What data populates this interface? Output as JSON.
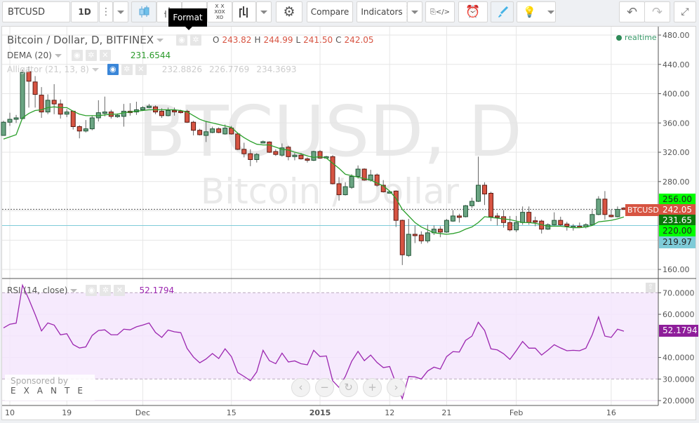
{
  "toolbar": {
    "symbol": "BTCUSD",
    "interval": "1D",
    "compare_label": "Compare",
    "indicators_label": "Indicators",
    "tooltip": "Format",
    "icons": [
      "more-icon",
      "candles-icon",
      "bars-icon",
      "line-icon",
      "point-figure-icon",
      "kagi-icon",
      "gear-icon",
      "script-icon",
      "alert-icon",
      "brush-icon",
      "bulb-icon",
      "undo-icon",
      "redo-icon",
      "fullscreen-icon"
    ]
  },
  "legend": {
    "title": "Bitcoin / Dollar, D, BITFINEX",
    "o_label": "O",
    "o": "243.82",
    "h_label": "H",
    "h": "244.99",
    "l_label": "L",
    "l": "241.50",
    "c_label": "C",
    "c": "242.05",
    "dema_label": "DEMA (20)",
    "dema_value": "231.6544",
    "alligator_label": "Alligator (21, 13, 8)",
    "alligator_values": [
      "232.8826",
      "226.7769",
      "234.3693"
    ],
    "rsi_label": "RSI (14, close)",
    "rsi_value": "52.1794",
    "realtime": "realtime"
  },
  "watermark": {
    "line1": "BTCUSD, D",
    "line2": "Bitcoin / Dollar"
  },
  "price_axis": {
    "ticks": [
      "480.00",
      "440.00",
      "400.00",
      "360.00",
      "320.00",
      "280.00",
      "160.00"
    ],
    "labels": {
      "high_line": "256.00",
      "symbol_tag": "BTCUSD",
      "last": "242.05",
      "dema": "231.65",
      "low_line": "220.00",
      "hline": "219.97"
    }
  },
  "rsi_axis": {
    "ticks": [
      "70.0000",
      "60.0000",
      "40.0000",
      "30.0000",
      "20.0000"
    ],
    "last": "52.1794"
  },
  "sponsor": {
    "text": "Sponsored by",
    "brand": "EXANTE"
  },
  "nav_buttons": [
    "‹",
    "−",
    "↻",
    "+",
    "›"
  ],
  "colors": {
    "up": "#6ba583",
    "down": "#d75442",
    "dema": "#2ca02c",
    "rsi": "#9c27b0",
    "hline": "#7ecbd8",
    "rsi_band": "#f4e6fd"
  },
  "chart_data": [
    {
      "type": "candlestick",
      "title": "Bitcoin / Dollar, D, BITFINEX",
      "ylim": [
        150,
        490
      ],
      "x_ticks": [
        {
          "label": "10",
          "index": 1
        },
        {
          "label": "19",
          "index": 10
        },
        {
          "label": "Dec",
          "index": 22
        },
        {
          "label": "15",
          "index": 36
        },
        {
          "label": "2015",
          "index": 50
        },
        {
          "label": "12",
          "index": 61
        },
        {
          "label": "21",
          "index": 70
        },
        {
          "label": "Feb",
          "index": 81
        },
        {
          "label": "16",
          "index": 96
        }
      ],
      "ohlc": [
        [
          343,
          363,
          343,
          361
        ],
        [
          361,
          374,
          356,
          365
        ],
        [
          365,
          371,
          360,
          367
        ],
        [
          366,
          433,
          365,
          429
        ],
        [
          430,
          437,
          381,
          417
        ],
        [
          416,
          424,
          381,
          399
        ],
        [
          398,
          409,
          367,
          375
        ],
        [
          375,
          399,
          372,
          391
        ],
        [
          391,
          413,
          372,
          386
        ],
        [
          386,
          392,
          366,
          372
        ],
        [
          372,
          379,
          368,
          375
        ],
        [
          376,
          377,
          351,
          355
        ],
        [
          355,
          357,
          339,
          349
        ],
        [
          349,
          364,
          347,
          352
        ],
        [
          352,
          370,
          350,
          367
        ],
        [
          367,
          391,
          362,
          374
        ],
        [
          374,
          396,
          369,
          375
        ],
        [
          375,
          378,
          366,
          369
        ],
        [
          370,
          373,
          367,
          370.5
        ],
        [
          369,
          386,
          355,
          376
        ],
        [
          376,
          387,
          370,
          375
        ],
        [
          375,
          389,
          371,
          378
        ],
        [
          378,
          383,
          377,
          381
        ],
        [
          381,
          386,
          380,
          383
        ],
        [
          382,
          384,
          372,
          375
        ],
        [
          376,
          380,
          367,
          370
        ],
        [
          370,
          381,
          369,
          377
        ],
        [
          377,
          381,
          370,
          376
        ],
        [
          376,
          378,
          373,
          375
        ],
        [
          376,
          378,
          360,
          361
        ],
        [
          361,
          363,
          343,
          350
        ],
        [
          350,
          352,
          343,
          344
        ],
        [
          343,
          362,
          334,
          348
        ],
        [
          347,
          355,
          346,
          352
        ],
        [
          352,
          354,
          346,
          347
        ],
        [
          345,
          358,
          344,
          353
        ],
        [
          353,
          356,
          344,
          345
        ],
        [
          345,
          347,
          323,
          324
        ],
        [
          324,
          333,
          313,
          318
        ],
        [
          318,
          324,
          301,
          310
        ],
        [
          310,
          319,
          306,
          317
        ],
        [
          334,
          336,
          332,
          334.5
        ],
        [
          334,
          335,
          319,
          320
        ],
        [
          321,
          324,
          315,
          317
        ],
        [
          316,
          332,
          314,
          326
        ],
        [
          327,
          329,
          309,
          314
        ],
        [
          314,
          319,
          309,
          316
        ],
        [
          316,
          319,
          310,
          311
        ],
        [
          311,
          313,
          306,
          309
        ],
        [
          309,
          322,
          308,
          321
        ],
        [
          321,
          323,
          311,
          312
        ],
        [
          313,
          315,
          312,
          314
        ],
        [
          314,
          316,
          276,
          277
        ],
        [
          277,
          286,
          254,
          262
        ],
        [
          262,
          279,
          261,
          273
        ],
        [
          272,
          290,
          270,
          287
        ],
        [
          287,
          302,
          284,
          297
        ],
        [
          297,
          298,
          281,
          282
        ],
        [
          282,
          296,
          280,
          289
        ],
        [
          289,
          291,
          273,
          275
        ],
        [
          275,
          282,
          265,
          266
        ],
        [
          265,
          267,
          264,
          266
        ],
        [
          267,
          268,
          218,
          227
        ],
        [
          227,
          228,
          166,
          180
        ],
        [
          179,
          229,
          177,
          208
        ],
        [
          208,
          220,
          196,
          207
        ],
        [
          207,
          212,
          195,
          199
        ],
        [
          199,
          221,
          196,
          210
        ],
        [
          210,
          220,
          207,
          215
        ],
        [
          215,
          219,
          204,
          211
        ],
        [
          211,
          229,
          210,
          227
        ],
        [
          226,
          241,
          225,
          233
        ],
        [
          233,
          236,
          224,
          232
        ],
        [
          232,
          248,
          231,
          247
        ],
        [
          247,
          258,
          244,
          253
        ],
        [
          253,
          314,
          252,
          275
        ],
        [
          275,
          279,
          248,
          263
        ],
        [
          264,
          266,
          226,
          232
        ],
        [
          233,
          237,
          220,
          232
        ],
        [
          232,
          241,
          217,
          224
        ],
        [
          224,
          233,
          212,
          214
        ],
        [
          214,
          233,
          211,
          224
        ],
        [
          224,
          246,
          221,
          238
        ],
        [
          238,
          246,
          221,
          224
        ],
        [
          226.5,
          232,
          219,
          226
        ],
        [
          226,
          228,
          209,
          215
        ],
        [
          215,
          223,
          214,
          221
        ],
        [
          221,
          238,
          220,
          227
        ],
        [
          227,
          232,
          219,
          221
        ],
        [
          222,
          225,
          213,
          219
        ],
        [
          219,
          222,
          213,
          219
        ],
        [
          219,
          224,
          217,
          218
        ],
        [
          218,
          223,
          216,
          221
        ],
        [
          221,
          241,
          220,
          235
        ],
        [
          235,
          260,
          234,
          256
        ],
        [
          256,
          267,
          228,
          235
        ],
        [
          234,
          242,
          231,
          232
        ],
        [
          232,
          246,
          231,
          242
        ],
        [
          243.82,
          244.99,
          241.5,
          242.05
        ]
      ],
      "dema": [
        338,
        341,
        344,
        367,
        373,
        377,
        378,
        381,
        382,
        381,
        381,
        376,
        372,
        370,
        370,
        370,
        371,
        372,
        372,
        374,
        375,
        376,
        377,
        378,
        378,
        378,
        378,
        378,
        377,
        375,
        370,
        365,
        362,
        360,
        358,
        356,
        354,
        346,
        340,
        335,
        331,
        330,
        330,
        327,
        324,
        323,
        320,
        318,
        315,
        313,
        314,
        312,
        305,
        298,
        290,
        288,
        286,
        284,
        282,
        278,
        274,
        267,
        257,
        242,
        233,
        224,
        218,
        214,
        210,
        209,
        208,
        209,
        211,
        215,
        218,
        224,
        232,
        231,
        230,
        229,
        228,
        226,
        224,
        224,
        223,
        221,
        219,
        219,
        219,
        218,
        217,
        217,
        218,
        220,
        225,
        226,
        227,
        229,
        231.65
      ],
      "hlines": [
        242.05,
        219.97
      ]
    },
    {
      "type": "line",
      "title": "RSI (14, close)",
      "ylim": [
        17,
        74
      ],
      "band": [
        30,
        70
      ],
      "values": [
        53.7,
        55.4,
        55.9,
        73.5,
        67,
        59.9,
        52.3,
        56,
        55,
        50.5,
        51,
        46,
        44.4,
        44.9,
        50.2,
        52.5,
        52.8,
        50.5,
        50.5,
        53.1,
        52.8,
        54.2,
        55,
        56,
        51.6,
        49.3,
        52.7,
        51.9,
        51.5,
        44.2,
        40.2,
        37.5,
        39.3,
        41.8,
        39.5,
        44,
        40.4,
        33,
        31.2,
        29.2,
        33.3,
        43.3,
        38.5,
        37.1,
        42,
        37.9,
        38.4,
        37.1,
        36.6,
        43.3,
        40.4,
        40.7,
        29.2,
        26.1,
        31.2,
        38.2,
        42.8,
        38.5,
        41.1,
        37.7,
        35.3,
        35.8,
        27.9,
        20.9,
        31.2,
        31,
        30,
        33.7,
        35.5,
        34.6,
        40.4,
        42.7,
        42.5,
        47.9,
        49.9,
        56.3,
        52.5,
        44,
        43.5,
        41.7,
        39.1,
        43.1,
        47.4,
        44.3,
        44.3,
        41.1,
        43.4,
        45.9,
        44.4,
        43.1,
        43.3,
        43.1,
        44.3,
        50.5,
        58.8,
        49.9,
        49.3,
        53.1,
        52.18
      ]
    }
  ]
}
